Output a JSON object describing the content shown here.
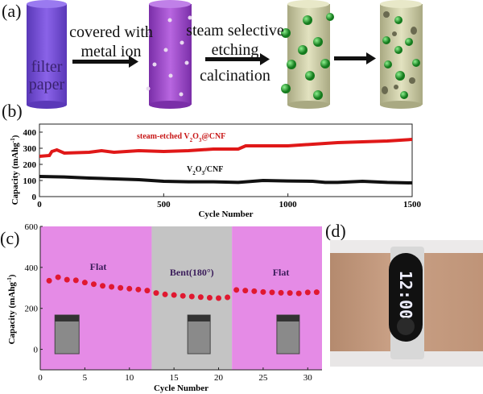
{
  "panels": {
    "a": "(a)",
    "b": "(b)",
    "c": "(c)",
    "d": "(d)"
  },
  "scheme": {
    "cylinder1_label": "filter paper",
    "step1": "covered with metal ion",
    "step2_line1": "steam selective",
    "step2_line2": "etching",
    "step2_line3": "calcination",
    "colors": {
      "filter_paper": "#7b52d6",
      "metal_ion": "#a04ec8",
      "carbon": "#cfcfa6",
      "particle": "#1fa82e"
    }
  },
  "watch": {
    "display": "12:00"
  },
  "chart_data": [
    {
      "type": "line",
      "panel": "b",
      "xlabel": "Cycle Number",
      "ylabel": "Capacity (mAhg-1)",
      "xlim": [
        0,
        1500
      ],
      "ylim": [
        0,
        450
      ],
      "xticks": [
        0,
        500,
        1000,
        1500
      ],
      "yticks": [
        0,
        100,
        200,
        300,
        400
      ],
      "grid": false,
      "series": [
        {
          "name": "steam-etched V2O3@CNF",
          "color": "#e01818",
          "x": [
            0,
            40,
            50,
            70,
            100,
            200,
            250,
            300,
            400,
            500,
            600,
            700,
            800,
            830,
            900,
            1000,
            1100,
            1200,
            1300,
            1400,
            1500
          ],
          "y": [
            250,
            255,
            280,
            290,
            270,
            275,
            285,
            275,
            285,
            280,
            285,
            295,
            295,
            315,
            315,
            315,
            325,
            335,
            340,
            345,
            355
          ]
        },
        {
          "name": "V2O3/CNF",
          "color": "#111111",
          "x": [
            0,
            100,
            200,
            300,
            400,
            500,
            600,
            700,
            800,
            900,
            1000,
            1100,
            1150,
            1200,
            1300,
            1400,
            1500
          ],
          "y": [
            125,
            122,
            115,
            110,
            105,
            95,
            92,
            92,
            88,
            100,
            97,
            95,
            88,
            88,
            95,
            88,
            85
          ]
        }
      ]
    },
    {
      "type": "scatter",
      "panel": "c",
      "xlabel": "Cycle Number",
      "ylabel": "Capacity (mAhg-1)",
      "xlim": [
        0,
        31.6
      ],
      "ylim": [
        -100,
        600
      ],
      "xticks": [
        0,
        5,
        10,
        15,
        20,
        25,
        30
      ],
      "yticks": [
        0,
        200,
        400,
        600
      ],
      "grid": false,
      "regions": [
        {
          "label": "Flat",
          "from": 0,
          "to": 12.5,
          "color": "#e58be6"
        },
        {
          "label": "Bent(180°)",
          "from": 12.5,
          "to": 21.5,
          "color": "#c4c4c4"
        },
        {
          "label": "Flat",
          "from": 21.5,
          "to": 31.6,
          "color": "#e58be6"
        }
      ],
      "marker_color": "#e01830",
      "x": [
        1,
        2,
        3,
        4,
        5,
        6,
        7,
        8,
        9,
        10,
        11,
        12,
        13,
        14,
        15,
        16,
        17,
        18,
        19,
        20,
        21,
        22,
        23,
        24,
        25,
        26,
        27,
        28,
        29,
        30,
        31
      ],
      "y": [
        335,
        352,
        340,
        337,
        326,
        318,
        310,
        305,
        300,
        296,
        292,
        287,
        275,
        268,
        265,
        261,
        258,
        255,
        252,
        250,
        254,
        290,
        287,
        284,
        280,
        278,
        276,
        275,
        273,
        278,
        279
      ]
    }
  ]
}
